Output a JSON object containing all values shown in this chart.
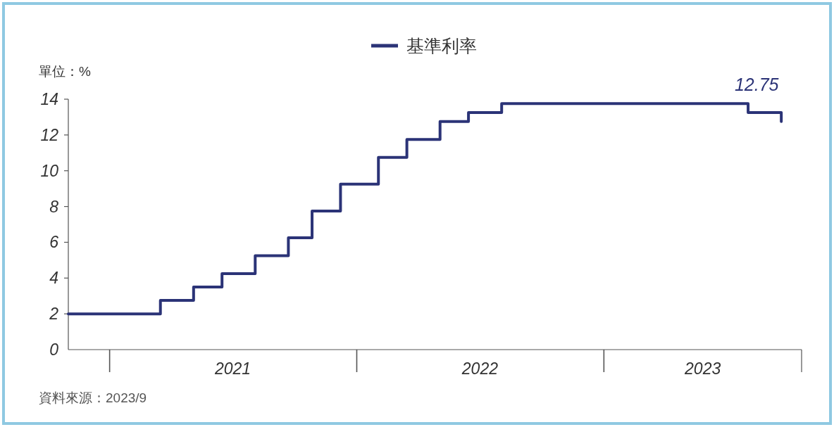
{
  "chart_data": {
    "type": "step",
    "ylabel": "單位：%",
    "annotations": [
      "資料來源：2023/9"
    ],
    "series": [
      {
        "name": "基準利率",
        "color": "#2b3377",
        "x": [
          "2020-11-01",
          "2021-03-17",
          "2021-05-05",
          "2021-06-16",
          "2021-08-04",
          "2021-09-22",
          "2021-10-27",
          "2021-12-08",
          "2022-02-02",
          "2022-03-16",
          "2022-05-04",
          "2022-06-15",
          "2022-08-03",
          "2023-08-02",
          "2023-09-20"
        ],
        "values": [
          2,
          2.75,
          3.5,
          4.25,
          5.25,
          6.25,
          7.75,
          9.25,
          10.75,
          11.75,
          12.75,
          13.25,
          13.75,
          13.25,
          12.75
        ],
        "value_labels": [
          null,
          null,
          null,
          null,
          null,
          null,
          null,
          null,
          null,
          null,
          null,
          null,
          null,
          null,
          "12.75"
        ]
      }
    ],
    "xlim": [
      "2020-11-01",
      "2023-10-20"
    ],
    "xticks": [
      {
        "value": "2021-01-01",
        "label": null
      },
      {
        "value": "2021-07-02",
        "label": "2021"
      },
      {
        "value": "2022-01-01",
        "label": null
      },
      {
        "value": "2022-07-02",
        "label": "2022"
      },
      {
        "value": "2023-01-01",
        "label": null
      },
      {
        "value": "2023-05-27",
        "label": "2023"
      }
    ],
    "ylim": [
      0,
      14
    ],
    "yticks": [
      0,
      2,
      4,
      6,
      8,
      10,
      12,
      14
    ],
    "legend": "top",
    "grid": false,
    "marker": "none",
    "line_style": "solid"
  }
}
